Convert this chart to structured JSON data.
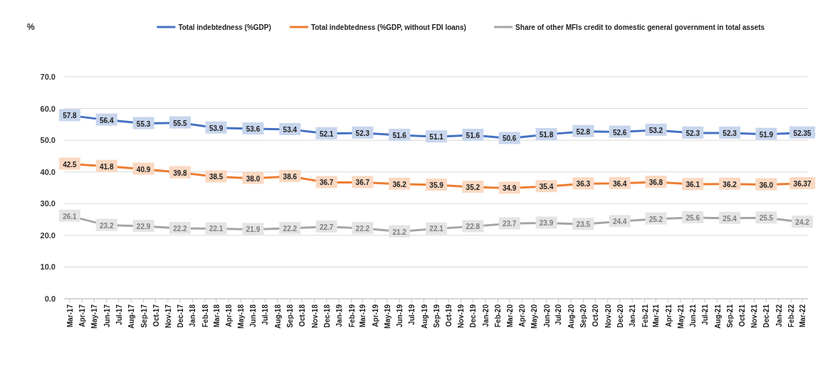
{
  "chart_data": {
    "type": "line",
    "ylabel": "%",
    "legend": "top right",
    "grid": "y",
    "marker": "square",
    "line_style": "solid",
    "x": [
      "2017-03",
      "2017-06",
      "2017-09",
      "2017-12",
      "2018-03",
      "2018-06",
      "2018-09",
      "2018-12",
      "2019-03",
      "2019-06",
      "2019-09",
      "2019-12",
      "2020-03",
      "2020-06",
      "2020-09",
      "2020-12",
      "2021-03",
      "2021-06",
      "2021-09",
      "2021-12",
      "2022-03"
    ],
    "xlim": [
      "2017-02-15",
      "2022-03-15"
    ],
    "xticks": [
      {
        "value": "2017-03",
        "label": "Mar-17"
      },
      {
        "value": "2017-04",
        "label": "Apr-17"
      },
      {
        "value": "2017-05",
        "label": "May-17"
      },
      {
        "value": "2017-06",
        "label": "Jun-17"
      },
      {
        "value": "2017-07",
        "label": "Jul-17"
      },
      {
        "value": "2017-08",
        "label": "Aug-17"
      },
      {
        "value": "2017-09",
        "label": "Sep-17"
      },
      {
        "value": "2017-10",
        "label": "Oct-17"
      },
      {
        "value": "2017-11",
        "label": "Nov-17"
      },
      {
        "value": "2017-12",
        "label": "Dec-17"
      },
      {
        "value": "2018-01",
        "label": "Jan-18"
      },
      {
        "value": "2018-02",
        "label": "Feb-18"
      },
      {
        "value": "2018-03",
        "label": "Mar-18"
      },
      {
        "value": "2018-04",
        "label": "Apr-18"
      },
      {
        "value": "2018-05",
        "label": "May-18"
      },
      {
        "value": "2018-06",
        "label": "Jun-18"
      },
      {
        "value": "2018-07",
        "label": "Jul-18"
      },
      {
        "value": "2018-08",
        "label": "Aug-18"
      },
      {
        "value": "2018-09",
        "label": "Sep-18"
      },
      {
        "value": "2018-10",
        "label": "Oct-18"
      },
      {
        "value": "2018-11",
        "label": "Nov-18"
      },
      {
        "value": "2018-12",
        "label": "Dec-18"
      },
      {
        "value": "2019-01",
        "label": "Jan-19"
      },
      {
        "value": "2019-02",
        "label": "Feb-19"
      },
      {
        "value": "2019-03",
        "label": "Mar-19"
      },
      {
        "value": "2019-04",
        "label": "Apr-19"
      },
      {
        "value": "2019-05",
        "label": "May-19"
      },
      {
        "value": "2019-06",
        "label": "Jun-19"
      },
      {
        "value": "2019-07",
        "label": "Jul-19"
      },
      {
        "value": "2019-08",
        "label": "Aug-19"
      },
      {
        "value": "2019-09",
        "label": "Sep-19"
      },
      {
        "value": "2019-10",
        "label": "Oct-19"
      },
      {
        "value": "2019-11",
        "label": "Nov-19"
      },
      {
        "value": "2019-12",
        "label": "Dec-19"
      },
      {
        "value": "2020-01",
        "label": "Jan-20"
      },
      {
        "value": "2020-02",
        "label": "Feb-20"
      },
      {
        "value": "2020-03",
        "label": "Mar-20"
      },
      {
        "value": "2020-04",
        "label": "Apr-20"
      },
      {
        "value": "2020-05",
        "label": "May-20"
      },
      {
        "value": "2020-06",
        "label": "Jun-20"
      },
      {
        "value": "2020-07",
        "label": "Jul-20"
      },
      {
        "value": "2020-08",
        "label": "Aug-20"
      },
      {
        "value": "2020-09",
        "label": "Sep-20"
      },
      {
        "value": "2020-10",
        "label": "Oct-20"
      },
      {
        "value": "2020-11",
        "label": "Nov-20"
      },
      {
        "value": "2020-12",
        "label": "Dec-20"
      },
      {
        "value": "2021-01",
        "label": "Jan-21"
      },
      {
        "value": "2021-02",
        "label": "Feb-21"
      },
      {
        "value": "2021-03",
        "label": "Mar-21"
      },
      {
        "value": "2021-04",
        "label": "Apr-21"
      },
      {
        "value": "2021-05",
        "label": "May-21"
      },
      {
        "value": "2021-06",
        "label": "Jun-21"
      },
      {
        "value": "2021-07",
        "label": "Jul-21"
      },
      {
        "value": "2021-08",
        "label": "Aug-21"
      },
      {
        "value": "2021-09",
        "label": "Sep-21"
      },
      {
        "value": "2021-10",
        "label": "Oct-21"
      },
      {
        "value": "2021-11",
        "label": "Nov-21"
      },
      {
        "value": "2021-12",
        "label": "Dec-21"
      },
      {
        "value": "2022-01",
        "label": "Jan-22"
      },
      {
        "value": "2022-02",
        "label": "Feb-22"
      },
      {
        "value": "2022-03",
        "label": "Mar-22"
      }
    ],
    "ylim": [
      0,
      70
    ],
    "yticks": [
      {
        "value": 0,
        "label": "0.0"
      },
      {
        "value": 10,
        "label": "10.0"
      },
      {
        "value": 20,
        "label": "20.0"
      },
      {
        "value": 30,
        "label": "30.0"
      },
      {
        "value": 40,
        "label": "40.0"
      },
      {
        "value": 50,
        "label": "50.0"
      },
      {
        "value": 60,
        "label": "60.0"
      },
      {
        "value": 70,
        "label": "70.0"
      }
    ],
    "series": [
      {
        "name": "Total indebtedness (%GDP)",
        "color": "#4472c4",
        "values": [
          57.8,
          56.4,
          55.3,
          55.5,
          53.9,
          53.6,
          53.4,
          52.1,
          52.3,
          51.6,
          51.1,
          51.6,
          50.6,
          51.8,
          52.8,
          52.6,
          53.2,
          52.3,
          52.3,
          51.9,
          52.35
        ],
        "value_labels": [
          "57.8",
          "56.4",
          "55.3",
          "55.5",
          "53.9",
          "53.6",
          "53.4",
          "52.1",
          "52.3",
          "51.6",
          "51.1",
          "51.6",
          "50.6",
          "51.8",
          "52.8",
          "52.6",
          "53.2",
          "52.3",
          "52.3",
          "51.9",
          "52.35"
        ]
      },
      {
        "name": "Total indebtedness (%GDP, without FDI loans)",
        "color": "#ed7d31",
        "values": [
          42.5,
          41.8,
          40.9,
          39.8,
          38.5,
          38.0,
          38.6,
          36.7,
          36.7,
          36.2,
          35.9,
          35.2,
          34.9,
          35.4,
          36.3,
          36.4,
          36.8,
          36.1,
          36.2,
          36.0,
          36.37
        ],
        "value_labels": [
          "42.5",
          "41.8",
          "40.9",
          "39.8",
          "38.5",
          "38.0",
          "38.6",
          "36.7",
          "36.7",
          "36.2",
          "35.9",
          "35.2",
          "34.9",
          "35.4",
          "36.3",
          "36.4",
          "36.8",
          "36.1",
          "36.2",
          "36.0",
          "36.37"
        ]
      },
      {
        "name": "Share of other MFIs credit to domestic general government in total assets",
        "color": "#a5a5a5",
        "values": [
          26.1,
          23.2,
          22.9,
          22.2,
          22.1,
          21.9,
          22.2,
          22.7,
          22.2,
          21.2,
          22.1,
          22.8,
          23.7,
          23.9,
          23.5,
          24.4,
          25.2,
          25.6,
          25.4,
          25.5,
          24.2
        ],
        "value_labels": [
          "26.1",
          "23.2",
          "22.9",
          "22.2",
          "22.1",
          "21.9",
          "22.2",
          "22.7",
          "22.2",
          "21.2",
          "22.1",
          "22.8",
          "23.7",
          "23.9",
          "23.5",
          "24.4",
          "25.2",
          "25.6",
          "25.4",
          "25.5",
          "24.2"
        ]
      }
    ]
  }
}
